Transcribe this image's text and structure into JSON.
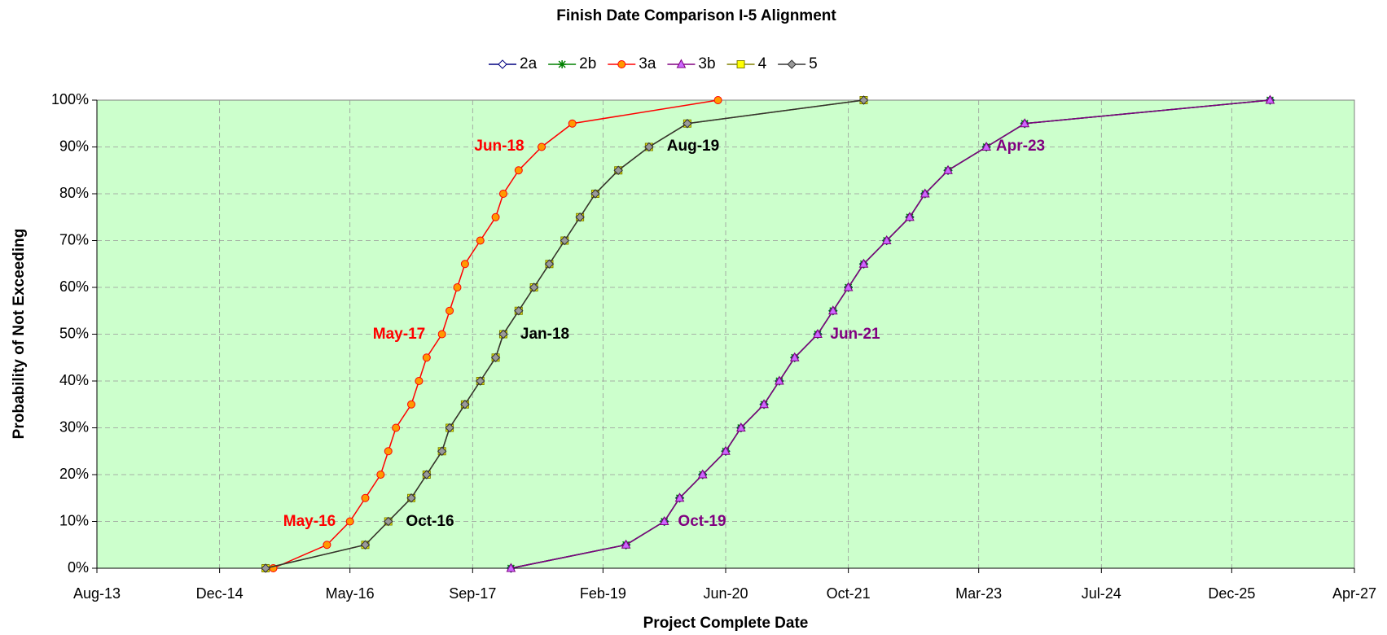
{
  "chart_data": {
    "type": "line",
    "title": "Finish Date Comparison I-5 Alignment",
    "x_label": "Project Complete Date",
    "y_label": "Probability of Not Exceeding",
    "plot_background": "#ccffcc",
    "grid": true,
    "legend": "top",
    "xlim": [
      "2013-08",
      "2027-04"
    ],
    "xticks": [
      {
        "value": "2013-08",
        "label": "Aug-13"
      },
      {
        "value": "2014-12",
        "label": "Dec-14"
      },
      {
        "value": "2016-05",
        "label": "May-16"
      },
      {
        "value": "2017-09",
        "label": "Sep-17"
      },
      {
        "value": "2019-02",
        "label": "Feb-19"
      },
      {
        "value": "2020-06",
        "label": "Jun-20"
      },
      {
        "value": "2021-10",
        "label": "Oct-21"
      },
      {
        "value": "2023-03",
        "label": "Mar-23"
      },
      {
        "value": "2024-07",
        "label": "Jul-24"
      },
      {
        "value": "2025-12",
        "label": "Dec-25"
      },
      {
        "value": "2027-04",
        "label": "Apr-27"
      }
    ],
    "ylim": [
      0,
      100
    ],
    "yticks": [
      {
        "value": 0,
        "label": "0%"
      },
      {
        "value": 10,
        "label": "10%"
      },
      {
        "value": 20,
        "label": "20%"
      },
      {
        "value": 30,
        "label": "30%"
      },
      {
        "value": 40,
        "label": "40%"
      },
      {
        "value": 50,
        "label": "50%"
      },
      {
        "value": 60,
        "label": "60%"
      },
      {
        "value": 70,
        "label": "70%"
      },
      {
        "value": 80,
        "label": "80%"
      },
      {
        "value": 90,
        "label": "90%"
      },
      {
        "value": 100,
        "label": "100%"
      }
    ],
    "series": [
      {
        "name": "2a",
        "color": "#000080",
        "marker": "diamond",
        "marker_fill": "#ffffff",
        "x": [
          "2018-02",
          "2019-05",
          "2019-10",
          "2019-12",
          "2020-03",
          "2020-06",
          "2020-08",
          "2020-11",
          "2021-01",
          "2021-03",
          "2021-06",
          "2021-08",
          "2021-10",
          "2021-12",
          "2022-03",
          "2022-06",
          "2022-08",
          "2022-11",
          "2023-04",
          "2023-09",
          "2026-05"
        ],
        "values": [
          0,
          5,
          10,
          15,
          20,
          25,
          30,
          35,
          40,
          45,
          50,
          55,
          60,
          65,
          70,
          75,
          80,
          85,
          90,
          95,
          100
        ]
      },
      {
        "name": "2b",
        "color": "#008000",
        "marker": "star",
        "marker_fill": "#008000",
        "x": [
          "2018-02",
          "2019-05",
          "2019-10",
          "2019-12",
          "2020-03",
          "2020-06",
          "2020-08",
          "2020-11",
          "2021-01",
          "2021-03",
          "2021-06",
          "2021-08",
          "2021-10",
          "2021-12",
          "2022-03",
          "2022-06",
          "2022-08",
          "2022-11",
          "2023-04",
          "2023-09",
          "2026-05"
        ],
        "values": [
          0,
          5,
          10,
          15,
          20,
          25,
          30,
          35,
          40,
          45,
          50,
          55,
          60,
          65,
          70,
          75,
          80,
          85,
          90,
          95,
          100
        ]
      },
      {
        "name": "3a",
        "color": "#ff0000",
        "marker": "circle",
        "marker_fill": "#ff9900",
        "x": [
          "2015-07",
          "2016-02",
          "2016-05",
          "2016-07",
          "2016-09",
          "2016-10",
          "2016-11",
          "2017-01",
          "2017-02",
          "2017-03",
          "2017-05",
          "2017-06",
          "2017-07",
          "2017-08",
          "2017-10",
          "2017-12",
          "2018-01",
          "2018-03",
          "2018-06",
          "2018-10",
          "2020-05"
        ],
        "values": [
          0,
          5,
          10,
          15,
          20,
          25,
          30,
          35,
          40,
          45,
          50,
          55,
          60,
          65,
          70,
          75,
          80,
          85,
          90,
          95,
          100
        ]
      },
      {
        "name": "3b",
        "color": "#800080",
        "marker": "triangle",
        "marker_fill": "#cc66ff",
        "x": [
          "2018-02",
          "2019-05",
          "2019-10",
          "2019-12",
          "2020-03",
          "2020-06",
          "2020-08",
          "2020-11",
          "2021-01",
          "2021-03",
          "2021-06",
          "2021-08",
          "2021-10",
          "2021-12",
          "2022-03",
          "2022-06",
          "2022-08",
          "2022-11",
          "2023-04",
          "2023-09",
          "2026-05"
        ],
        "values": [
          0,
          5,
          10,
          15,
          20,
          25,
          30,
          35,
          40,
          45,
          50,
          55,
          60,
          65,
          70,
          75,
          80,
          85,
          90,
          95,
          100
        ]
      },
      {
        "name": "4",
        "color": "#808000",
        "marker": "square",
        "marker_fill": "#ffff00",
        "x": [
          "2015-06",
          "2016-07",
          "2016-10",
          "2017-01",
          "2017-03",
          "2017-05",
          "2017-06",
          "2017-08",
          "2017-10",
          "2017-12",
          "2018-01",
          "2018-03",
          "2018-05",
          "2018-07",
          "2018-09",
          "2018-11",
          "2019-01",
          "2019-04",
          "2019-08",
          "2020-01",
          "2021-12"
        ],
        "values": [
          0,
          5,
          10,
          15,
          20,
          25,
          30,
          35,
          40,
          45,
          50,
          55,
          60,
          65,
          70,
          75,
          80,
          85,
          90,
          95,
          100
        ]
      },
      {
        "name": "5",
        "color": "#333333",
        "marker": "diamond",
        "marker_fill": "#999999",
        "x": [
          "2015-06",
          "2016-07",
          "2016-10",
          "2017-01",
          "2017-03",
          "2017-05",
          "2017-06",
          "2017-08",
          "2017-10",
          "2017-12",
          "2018-01",
          "2018-03",
          "2018-05",
          "2018-07",
          "2018-09",
          "2018-11",
          "2019-01",
          "2019-04",
          "2019-08",
          "2020-01",
          "2021-12"
        ],
        "values": [
          0,
          5,
          10,
          15,
          20,
          25,
          30,
          35,
          40,
          45,
          50,
          55,
          60,
          65,
          70,
          75,
          80,
          85,
          90,
          95,
          100
        ]
      }
    ],
    "annotations": [
      {
        "text": "May-16",
        "color": "#ff0000"
      },
      {
        "text": "May-17",
        "color": "#ff0000"
      },
      {
        "text": "Jun-18",
        "color": "#ff0000"
      },
      {
        "text": "Oct-16",
        "color": "#000000"
      },
      {
        "text": "Jan-18",
        "color": "#000000"
      },
      {
        "text": "Aug-19",
        "color": "#000000"
      },
      {
        "text": "Oct-19",
        "color": "#800080"
      },
      {
        "text": "Jun-21",
        "color": "#800080"
      },
      {
        "text": "Apr-23",
        "color": "#800080"
      }
    ]
  }
}
